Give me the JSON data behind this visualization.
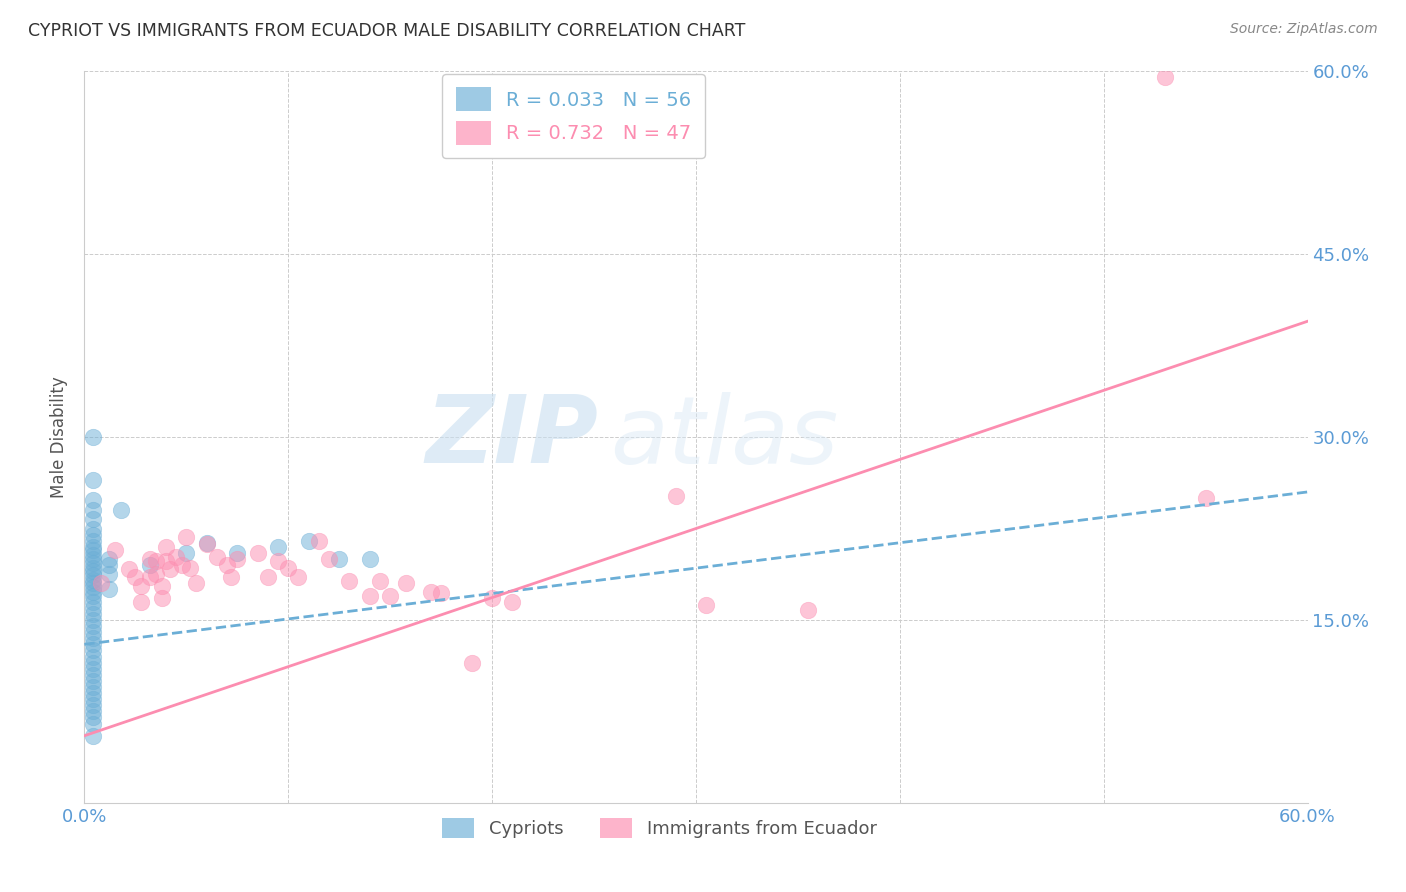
{
  "title": "CYPRIOT VS IMMIGRANTS FROM ECUADOR MALE DISABILITY CORRELATION CHART",
  "source": "Source: ZipAtlas.com",
  "ylabel": "Male Disability",
  "xlim": [
    0.0,
    0.6
  ],
  "ylim": [
    0.0,
    0.6
  ],
  "cypriot_color": "#6baed6",
  "ecuador_color": "#fc8db0",
  "watermark_zip": "ZIP",
  "watermark_atlas": "atlas",
  "cypriot_R": 0.033,
  "cypriot_N": 56,
  "ecuador_R": 0.732,
  "ecuador_N": 47,
  "cypriot_points": [
    [
      0.004,
      0.3
    ],
    [
      0.004,
      0.265
    ],
    [
      0.004,
      0.248
    ],
    [
      0.004,
      0.24
    ],
    [
      0.004,
      0.233
    ],
    [
      0.004,
      0.225
    ],
    [
      0.004,
      0.22
    ],
    [
      0.004,
      0.215
    ],
    [
      0.004,
      0.21
    ],
    [
      0.004,
      0.207
    ],
    [
      0.004,
      0.203
    ],
    [
      0.004,
      0.2
    ],
    [
      0.004,
      0.197
    ],
    [
      0.004,
      0.193
    ],
    [
      0.004,
      0.19
    ],
    [
      0.004,
      0.187
    ],
    [
      0.004,
      0.183
    ],
    [
      0.004,
      0.18
    ],
    [
      0.004,
      0.177
    ],
    [
      0.004,
      0.173
    ],
    [
      0.004,
      0.17
    ],
    [
      0.004,
      0.165
    ],
    [
      0.004,
      0.16
    ],
    [
      0.004,
      0.155
    ],
    [
      0.004,
      0.15
    ],
    [
      0.004,
      0.145
    ],
    [
      0.004,
      0.14
    ],
    [
      0.004,
      0.135
    ],
    [
      0.004,
      0.13
    ],
    [
      0.004,
      0.125
    ],
    [
      0.004,
      0.12
    ],
    [
      0.004,
      0.115
    ],
    [
      0.004,
      0.11
    ],
    [
      0.004,
      0.105
    ],
    [
      0.004,
      0.1
    ],
    [
      0.004,
      0.095
    ],
    [
      0.004,
      0.09
    ],
    [
      0.004,
      0.085
    ],
    [
      0.004,
      0.08
    ],
    [
      0.004,
      0.075
    ],
    [
      0.004,
      0.07
    ],
    [
      0.004,
      0.065
    ],
    [
      0.004,
      0.055
    ],
    [
      0.012,
      0.2
    ],
    [
      0.012,
      0.195
    ],
    [
      0.012,
      0.188
    ],
    [
      0.012,
      0.175
    ],
    [
      0.018,
      0.24
    ],
    [
      0.032,
      0.195
    ],
    [
      0.05,
      0.205
    ],
    [
      0.06,
      0.213
    ],
    [
      0.075,
      0.205
    ],
    [
      0.095,
      0.21
    ],
    [
      0.11,
      0.215
    ],
    [
      0.125,
      0.2
    ],
    [
      0.14,
      0.2
    ]
  ],
  "ecuador_points": [
    [
      0.008,
      0.18
    ],
    [
      0.015,
      0.207
    ],
    [
      0.022,
      0.192
    ],
    [
      0.025,
      0.185
    ],
    [
      0.028,
      0.178
    ],
    [
      0.028,
      0.165
    ],
    [
      0.032,
      0.2
    ],
    [
      0.032,
      0.185
    ],
    [
      0.035,
      0.198
    ],
    [
      0.035,
      0.188
    ],
    [
      0.038,
      0.178
    ],
    [
      0.038,
      0.168
    ],
    [
      0.04,
      0.21
    ],
    [
      0.04,
      0.198
    ],
    [
      0.042,
      0.192
    ],
    [
      0.045,
      0.202
    ],
    [
      0.048,
      0.195
    ],
    [
      0.05,
      0.218
    ],
    [
      0.052,
      0.193
    ],
    [
      0.055,
      0.18
    ],
    [
      0.06,
      0.212
    ],
    [
      0.065,
      0.202
    ],
    [
      0.07,
      0.195
    ],
    [
      0.072,
      0.185
    ],
    [
      0.075,
      0.2
    ],
    [
      0.085,
      0.205
    ],
    [
      0.09,
      0.185
    ],
    [
      0.095,
      0.198
    ],
    [
      0.1,
      0.193
    ],
    [
      0.105,
      0.185
    ],
    [
      0.115,
      0.215
    ],
    [
      0.12,
      0.2
    ],
    [
      0.13,
      0.182
    ],
    [
      0.14,
      0.17
    ],
    [
      0.145,
      0.182
    ],
    [
      0.15,
      0.17
    ],
    [
      0.158,
      0.18
    ],
    [
      0.17,
      0.173
    ],
    [
      0.175,
      0.172
    ],
    [
      0.19,
      0.115
    ],
    [
      0.2,
      0.168
    ],
    [
      0.21,
      0.165
    ],
    [
      0.29,
      0.252
    ],
    [
      0.305,
      0.162
    ],
    [
      0.355,
      0.158
    ],
    [
      0.53,
      0.595
    ],
    [
      0.55,
      0.25
    ]
  ]
}
